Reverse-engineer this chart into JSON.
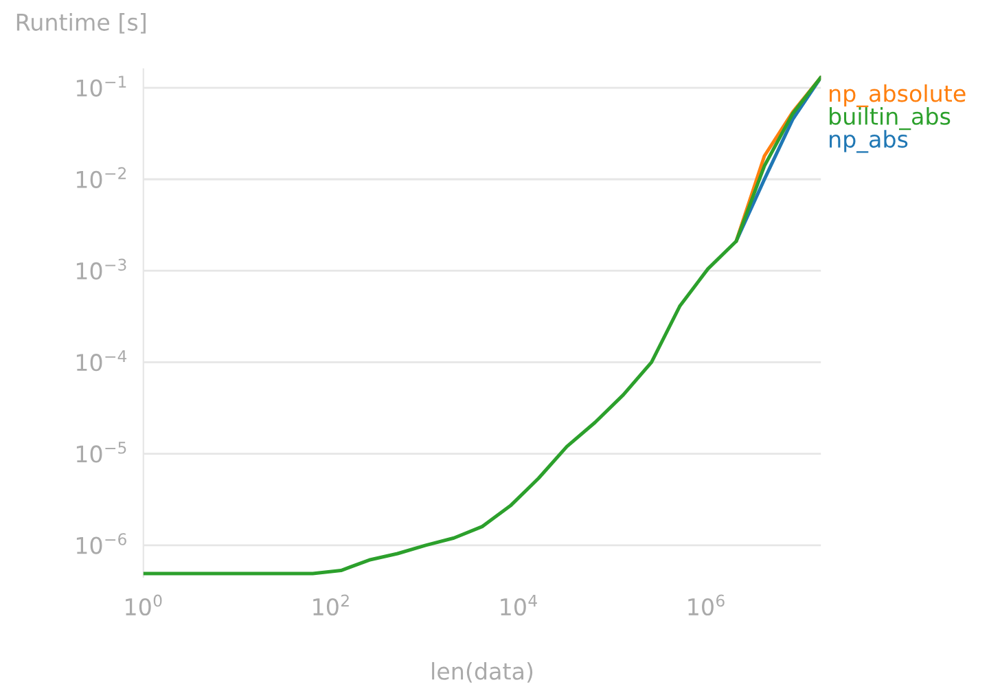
{
  "chart_data": {
    "type": "line",
    "xlabel": "len(data)",
    "ylabel": "Runtime [s]",
    "log": "xy",
    "x": [
      1,
      2,
      4,
      8,
      16,
      32,
      64,
      128,
      256,
      512,
      1024,
      2048,
      4096,
      8192,
      16384,
      32768,
      65536,
      131072,
      262144,
      524288,
      1048576,
      2097152,
      4194304,
      8388608,
      16777216
    ],
    "series": [
      {
        "name": "np_absolute",
        "color": "#ff7f0e",
        "values": [
          null,
          null,
          null,
          null,
          null,
          null,
          null,
          null,
          null,
          null,
          null,
          null,
          null,
          null,
          null,
          null,
          null,
          null,
          null,
          null,
          null,
          0.0021,
          0.018,
          0.054,
          0.13
        ]
      },
      {
        "name": "builtin_abs",
        "color": "#2ca02c",
        "values": [
          4.9e-07,
          4.9e-07,
          4.9e-07,
          4.9e-07,
          4.9e-07,
          4.9e-07,
          4.9e-07,
          5.3e-07,
          6.9e-07,
          8.1e-07,
          1e-06,
          1.2e-06,
          1.6e-06,
          2.7e-06,
          5.4e-06,
          1.2e-05,
          2.2e-05,
          4.4e-05,
          0.0001,
          0.00041,
          0.00105,
          0.0021,
          0.014,
          0.052,
          0.13
        ]
      },
      {
        "name": "np_abs",
        "color": "#1f77b4",
        "values": [
          null,
          null,
          null,
          null,
          null,
          null,
          null,
          null,
          null,
          null,
          null,
          null,
          null,
          null,
          null,
          null,
          null,
          null,
          null,
          null,
          null,
          0.0021,
          0.01,
          0.045,
          0.13
        ]
      }
    ],
    "xlim": [
      1,
      16777216
    ],
    "ylim": [
      4.5e-07,
      0.16
    ],
    "xticks": [
      {
        "value": 1,
        "label": "10$^{0}$"
      },
      {
        "value": 100,
        "label": "10$^{2}$"
      },
      {
        "value": 10000,
        "label": "10$^{4}$"
      },
      {
        "value": 1000000,
        "label": "10$^{6}$"
      }
    ],
    "yticks": [
      {
        "value": 1e-06,
        "label": "10$^{−6}$"
      },
      {
        "value": 1e-05,
        "label": "10$^{−5}$"
      },
      {
        "value": 0.0001,
        "label": "10$^{−4}$"
      },
      {
        "value": 0.001,
        "label": "10$^{−3}$"
      },
      {
        "value": 0.01,
        "label": "10$^{−2}$"
      },
      {
        "value": 0.1,
        "label": "10$^{−1}$"
      }
    ],
    "grid": "y",
    "legend": "top right",
    "marker": "none",
    "line_style": "solid"
  }
}
